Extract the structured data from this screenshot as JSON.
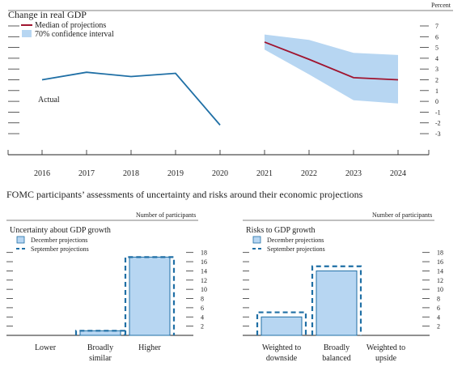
{
  "percent_label": "Percent",
  "heading": "FOMC participants’ assessments of uncertainty and risks around their economic projections",
  "chart_data": [
    {
      "type": "line",
      "title": "Change in real GDP",
      "xlabel": "",
      "ylabel": "Percent",
      "x": [
        "2016",
        "2017",
        "2018",
        "2019",
        "2020",
        "2021",
        "2022",
        "2023",
        "2024"
      ],
      "ylim": [
        -3,
        7
      ],
      "yticks": [
        "7",
        "6",
        "5",
        "4",
        "3",
        "2",
        "1",
        "0",
        "-1",
        "-2",
        "-3"
      ],
      "series": [
        {
          "name": "Actual",
          "color": "#1f6fa5",
          "x": [
            "2016",
            "2017",
            "2018",
            "2019",
            "2020"
          ],
          "values": [
            2.0,
            2.7,
            2.3,
            2.6,
            -2.2
          ]
        },
        {
          "name": "Median of projections",
          "color": "#a0142f",
          "x": [
            "2021",
            "2022",
            "2023",
            "2024"
          ],
          "values": [
            5.5,
            3.9,
            2.2,
            2.0
          ]
        }
      ],
      "band": {
        "name": "70% confidence interval",
        "color": "#b7d6f2",
        "x": [
          "2021",
          "2022",
          "2023",
          "2024"
        ],
        "low": [
          4.8,
          2.5,
          0.1,
          -0.2
        ],
        "high": [
          6.2,
          5.7,
          4.5,
          4.3
        ]
      },
      "legend": [
        "Median of projections",
        "70% confidence interval"
      ],
      "annotation": "Actual"
    },
    {
      "type": "bar",
      "title": "Uncertainty about GDP growth",
      "ylabel": "Number of participants",
      "categories": [
        "Lower",
        "Broadly similar",
        "Higher"
      ],
      "category_lines": [
        [
          "Lower"
        ],
        [
          "Broadly",
          "similar"
        ],
        [
          "Higher"
        ]
      ],
      "ylim": [
        0,
        19
      ],
      "yticks": [
        "18",
        "16",
        "14",
        "12",
        "10",
        "8",
        "6",
        "4",
        "2"
      ],
      "series": [
        {
          "name": "December projections",
          "color": "#b7d6f2",
          "values": [
            0,
            1,
            17
          ]
        },
        {
          "name": "September projections",
          "color": "#1f6fa5",
          "values": [
            0,
            1,
            17
          ]
        }
      ]
    },
    {
      "type": "bar",
      "title": "Risks to GDP growth",
      "ylabel": "Number of participants",
      "categories": [
        "Weighted to downside",
        "Broadly balanced",
        "Weighted to upside"
      ],
      "category_lines": [
        [
          "Weighted to",
          "downside"
        ],
        [
          "Broadly",
          "balanced"
        ],
        [
          "Weighted to",
          "upside"
        ]
      ],
      "ylim": [
        0,
        19
      ],
      "yticks": [
        "18",
        "16",
        "14",
        "12",
        "10",
        "8",
        "6",
        "4",
        "2"
      ],
      "series": [
        {
          "name": "December projections",
          "color": "#b7d6f2",
          "values": [
            4,
            14,
            0
          ]
        },
        {
          "name": "September projections",
          "color": "#1f6fa5",
          "values": [
            5,
            15,
            0
          ]
        }
      ]
    }
  ]
}
